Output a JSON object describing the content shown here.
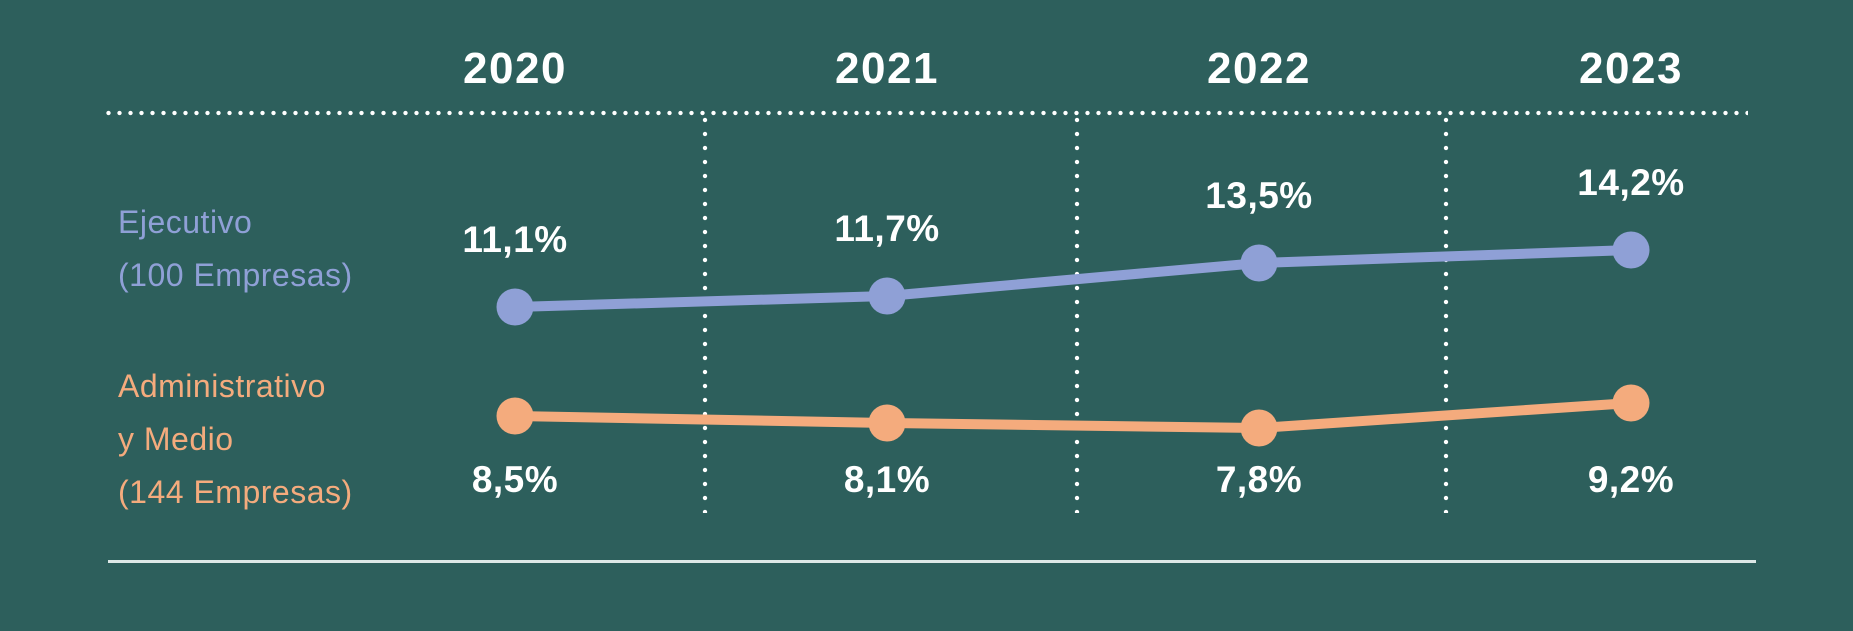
{
  "colors": {
    "background": "#2D5F5C",
    "series_ejecutivo": "#8FA0D6",
    "series_administrativo": "#F4AB7D",
    "value_text": "#FFFFFF",
    "grid_dots": "#FFFFFF",
    "bottom_rule": "#DDE8E7"
  },
  "chart_data": {
    "type": "line",
    "categories": [
      "2020",
      "2021",
      "2022",
      "2023"
    ],
    "series": [
      {
        "name": "Ejecutivo (100 Empresas)",
        "legend_lines": [
          "Ejecutivo",
          "(100 Empresas)"
        ],
        "color": "#8FA0D6",
        "values": [
          11.1,
          11.7,
          13.5,
          14.2
        ],
        "labels": [
          "11,1%",
          "11,7%",
          "13,5%",
          "14,2%"
        ]
      },
      {
        "name": "Administrativo y Medio (144 Empresas)",
        "legend_lines": [
          "Administrativo",
          "y Medio",
          "(144 Empresas)"
        ],
        "color": "#F4AB7D",
        "values": [
          8.5,
          8.1,
          7.8,
          9.2
        ],
        "labels": [
          "8,5%",
          "8,1%",
          "7,8%",
          "9,2%"
        ]
      }
    ],
    "title": "",
    "xlabel": "",
    "ylabel": "",
    "unit": "%",
    "legend_position": "left",
    "grid": "dotted white column separators; dotted line under year headers; solid rule at bottom"
  }
}
